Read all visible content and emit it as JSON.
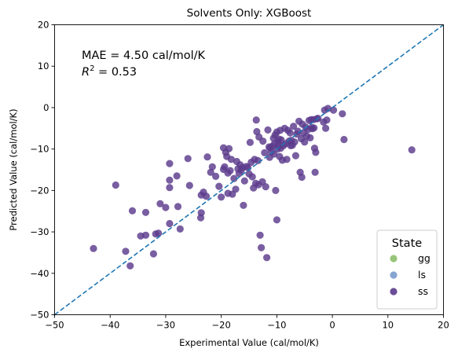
{
  "chart_data": {
    "type": "scatter",
    "title": "Solvents Only: XGBoost",
    "xlabel": "Experimental Value (cal/mol/K)",
    "ylabel": "Predicted Value (cal/mol/K)",
    "xlim": [
      -50,
      20
    ],
    "ylim": [
      -50,
      20
    ],
    "xticks": [
      -50,
      -40,
      -30,
      -20,
      -10,
      0,
      10,
      20
    ],
    "yticks": [
      -50,
      -40,
      -30,
      -20,
      -10,
      0,
      10,
      20
    ],
    "annotation": {
      "mae_text": "MAE = 4.50 cal/mol/K",
      "r2_prefix": "R",
      "r2_sup": "2",
      "r2_suffix": " = 0.53"
    },
    "reference_line": {
      "style": "dashed",
      "color": "#1f77b4",
      "from": [
        -50,
        -50
      ],
      "to": [
        20,
        20
      ]
    },
    "legend": {
      "title": "State",
      "placement": "bottom-right",
      "entries": [
        {
          "label": "gg",
          "color": "#8dbf6a"
        },
        {
          "label": "ls",
          "color": "#7a9bcc"
        },
        {
          "label": "ss",
          "color": "#5b3a8c"
        }
      ]
    },
    "grid": false,
    "series": [
      {
        "name": "ss",
        "color": "#5b3a8c",
        "points": [
          [
            -43.0,
            -34.0
          ],
          [
            -39.0,
            -18.7
          ],
          [
            -37.2,
            -34.7
          ],
          [
            -36.4,
            -38.2
          ],
          [
            -36.0,
            -24.9
          ],
          [
            -34.5,
            -31.0
          ],
          [
            -33.6,
            -25.3
          ],
          [
            -33.6,
            -30.8
          ],
          [
            -32.2,
            -35.3
          ],
          [
            -31.8,
            -30.5
          ],
          [
            -31.0,
            -23.2
          ],
          [
            -31.3,
            -30.3
          ],
          [
            -30.0,
            -24.1
          ],
          [
            -29.3,
            -13.5
          ],
          [
            -29.3,
            -17.5
          ],
          [
            -29.3,
            -19.3
          ],
          [
            -29.3,
            -28.0
          ],
          [
            -28.0,
            -16.5
          ],
          [
            -27.4,
            -29.3
          ],
          [
            -27.8,
            -23.9
          ],
          [
            -26.0,
            -12.3
          ],
          [
            -25.7,
            -18.8
          ],
          [
            -23.7,
            -26.6
          ],
          [
            -23.6,
            -21.1
          ],
          [
            -23.6,
            -25.4
          ],
          [
            -23.2,
            -20.4
          ],
          [
            -22.7,
            -21.4
          ],
          [
            -22.5,
            -11.9
          ],
          [
            -21.9,
            -15.6
          ],
          [
            -21.6,
            -14.3
          ],
          [
            -21.0,
            -16.6
          ],
          [
            -20.4,
            -19.0
          ],
          [
            -20.0,
            -21.6
          ],
          [
            -19.6,
            -9.7
          ],
          [
            -19.6,
            -14.9
          ],
          [
            -19.4,
            -14.3
          ],
          [
            -19.2,
            -10.8
          ],
          [
            -19.0,
            -11.8
          ],
          [
            -18.8,
            -20.7
          ],
          [
            -18.8,
            -15.8
          ],
          [
            -18.6,
            -9.9
          ],
          [
            -18.4,
            -15.2
          ],
          [
            -18.2,
            -12.5
          ],
          [
            -18.0,
            -20.9
          ],
          [
            -17.7,
            -17.1
          ],
          [
            -17.4,
            -19.7
          ],
          [
            -17.2,
            -13.0
          ],
          [
            -17.0,
            -14.8
          ],
          [
            -16.8,
            -15.9
          ],
          [
            -16.6,
            -13.8
          ],
          [
            -16.4,
            -15.1
          ],
          [
            -16.2,
            -14.5
          ],
          [
            -16.0,
            -23.6
          ],
          [
            -15.8,
            -17.7
          ],
          [
            -15.5,
            -14.2
          ],
          [
            -15.2,
            -14.5
          ],
          [
            -15.0,
            -16.0
          ],
          [
            -14.8,
            -8.4
          ],
          [
            -14.6,
            -13.2
          ],
          [
            -14.4,
            -16.7
          ],
          [
            -14.2,
            -19.4
          ],
          [
            -14.0,
            -12.5
          ],
          [
            -13.8,
            -18.3
          ],
          [
            -13.7,
            -3.0
          ],
          [
            -13.6,
            -5.8
          ],
          [
            -13.4,
            -12.8
          ],
          [
            -13.3,
            -18.6
          ],
          [
            -13.2,
            -7.1
          ],
          [
            -13.0,
            -30.8
          ],
          [
            -12.8,
            -33.8
          ],
          [
            -12.6,
            -17.9
          ],
          [
            -12.5,
            -8.1
          ],
          [
            -12.2,
            -10.9
          ],
          [
            -12.0,
            -19.1
          ],
          [
            -11.8,
            -36.2
          ],
          [
            -11.6,
            -5.4
          ],
          [
            -11.4,
            -9.5
          ],
          [
            -11.3,
            -12.0
          ],
          [
            -11.2,
            -9.7
          ],
          [
            -11.0,
            -10.7
          ],
          [
            -10.8,
            -9.3
          ],
          [
            -10.6,
            -7.4
          ],
          [
            -10.5,
            -11.2
          ],
          [
            -10.4,
            -8.7
          ],
          [
            -10.3,
            -6.6
          ],
          [
            -10.2,
            -20.0
          ],
          [
            -10.0,
            -27.1
          ],
          [
            -10.0,
            -5.9
          ],
          [
            -9.9,
            -10.0
          ],
          [
            -9.8,
            -8.2
          ],
          [
            -9.7,
            -9.2
          ],
          [
            -9.6,
            -7.6
          ],
          [
            -9.5,
            -11.8
          ],
          [
            -9.4,
            -5.5
          ],
          [
            -9.3,
            -9.8
          ],
          [
            -9.2,
            -7.8
          ],
          [
            -9.0,
            -12.7
          ],
          [
            -8.8,
            -9.2
          ],
          [
            -8.6,
            -5.0
          ],
          [
            -8.4,
            -8.7
          ],
          [
            -8.2,
            -12.5
          ],
          [
            -8.0,
            -5.5
          ],
          [
            -7.8,
            -8.1
          ],
          [
            -7.6,
            -6.1
          ],
          [
            -7.5,
            -9.2
          ],
          [
            -7.4,
            -7.9
          ],
          [
            -7.2,
            -9.1
          ],
          [
            -7.0,
            -4.5
          ],
          [
            -6.8,
            -8.3
          ],
          [
            -6.6,
            -11.6
          ],
          [
            -6.4,
            -6.4
          ],
          [
            -6.2,
            -5.7
          ],
          [
            -6.0,
            -3.3
          ],
          [
            -5.8,
            -15.6
          ],
          [
            -5.6,
            -7.5
          ],
          [
            -5.5,
            -16.8
          ],
          [
            -5.4,
            -4.0
          ],
          [
            -5.2,
            -6.1
          ],
          [
            -5.0,
            -8.3
          ],
          [
            -4.8,
            -4.7
          ],
          [
            -4.6,
            -6.9
          ],
          [
            -4.4,
            -5.3
          ],
          [
            -4.2,
            -3.1
          ],
          [
            -4.0,
            -7.3
          ],
          [
            -3.8,
            -2.9
          ],
          [
            -3.7,
            -4.8
          ],
          [
            -3.6,
            -5.1
          ],
          [
            -3.4,
            -2.9
          ],
          [
            -3.3,
            -4.9
          ],
          [
            -3.2,
            -9.8
          ],
          [
            -3.1,
            -15.6
          ],
          [
            -3.0,
            -10.8
          ],
          [
            -2.8,
            -2.7
          ],
          [
            -2.6,
            -2.6
          ],
          [
            -1.6,
            -3.5
          ],
          [
            -1.4,
            -0.6
          ],
          [
            -1.2,
            -5.0
          ],
          [
            -1.0,
            -3.0
          ],
          [
            -0.8,
            -0.2
          ],
          [
            0.2,
            -0.6
          ],
          [
            1.8,
            -1.5
          ],
          [
            2.1,
            -7.7
          ],
          [
            14.3,
            -10.2
          ]
        ]
      }
    ]
  }
}
